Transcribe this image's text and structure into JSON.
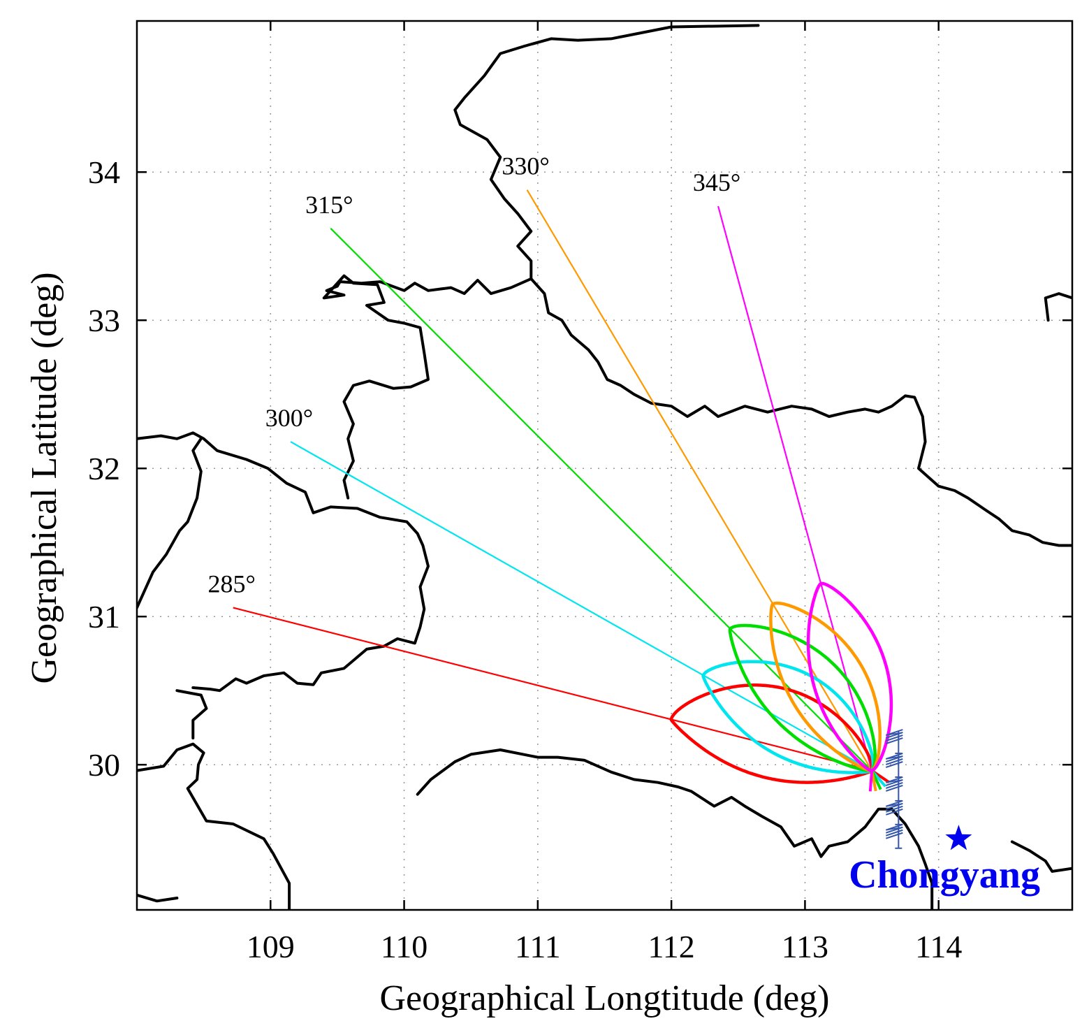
{
  "chart_data": {
    "type": "map",
    "xlabel": "Geographical Longtitude (deg)",
    "ylabel": "Geographical Latitude (deg)",
    "xlim": [
      108,
      115
    ],
    "ylim": [
      29.02,
      35.02
    ],
    "xticks": [
      109,
      110,
      111,
      112,
      113,
      114
    ],
    "yticks": [
      30,
      31,
      32,
      33,
      34
    ],
    "grid": true,
    "radar_site": {
      "lon": 113.5,
      "lat": 29.96
    },
    "beams": [
      {
        "label": "285°",
        "azimuth": 285,
        "color": "#ff0000",
        "end": [
          108.72,
          31.06
        ],
        "lobe_length_deg": 1.55,
        "lobe_halfwidth_deg": 0.34,
        "lobe_bend": 0.06
      },
      {
        "label": "300°",
        "azimuth": 300,
        "color": "#00e5ee",
        "end": [
          109.15,
          32.18
        ],
        "lobe_length_deg": 1.45,
        "lobe_halfwidth_deg": 0.32,
        "lobe_bend": 0.05
      },
      {
        "label": "315°",
        "azimuth": 315,
        "color": "#00dd00",
        "end": [
          109.45,
          33.62
        ],
        "lobe_length_deg": 1.5,
        "lobe_halfwidth_deg": 0.3,
        "lobe_bend": 0.04
      },
      {
        "label": "330°",
        "azimuth": 330,
        "color": "#ff9900",
        "end": [
          110.92,
          33.88
        ],
        "lobe_length_deg": 1.45,
        "lobe_halfwidth_deg": 0.29,
        "lobe_bend": 0.03
      },
      {
        "label": "345°",
        "azimuth": 345,
        "color": "#ff00ff",
        "end": [
          112.35,
          33.77
        ],
        "lobe_length_deg": 1.45,
        "lobe_halfwidth_deg": 0.28,
        "lobe_bend": 0.02
      }
    ],
    "station": {
      "name": "Chongyang",
      "lon": 114.15,
      "lat": 29.5,
      "color": "#0000ee",
      "marker": "star"
    },
    "antenna_array": {
      "lon": 113.7,
      "lats": [
        30.18,
        30.02,
        29.86,
        29.7,
        29.54
      ],
      "color": "#3355aa"
    },
    "borders": [
      [
        [
          108.0,
          29.96
        ],
        [
          108.2,
          29.99
        ],
        [
          108.3,
          30.1
        ],
        [
          108.42,
          30.14
        ],
        [
          108.5,
          30.08
        ],
        [
          108.46,
          30.0
        ],
        [
          108.45,
          29.9
        ],
        [
          108.38,
          29.84
        ],
        [
          108.52,
          29.62
        ],
        [
          108.72,
          29.6
        ],
        [
          108.95,
          29.5
        ],
        [
          109.02,
          29.4
        ],
        [
          109.14,
          29.2
        ],
        [
          109.14,
          29.02
        ]
      ],
      [
        [
          108.3,
          30.5
        ],
        [
          108.48,
          30.47
        ],
        [
          108.52,
          30.38
        ],
        [
          108.42,
          30.3
        ],
        [
          108.42,
          30.18
        ]
      ],
      [
        [
          108.42,
          30.52
        ],
        [
          108.55,
          30.51
        ],
        [
          108.62,
          30.5
        ],
        [
          108.74,
          30.58
        ],
        [
          108.82,
          30.55
        ],
        [
          108.95,
          30.6
        ],
        [
          109.1,
          30.62
        ],
        [
          109.2,
          30.55
        ],
        [
          109.32,
          30.54
        ],
        [
          109.38,
          30.62
        ],
        [
          109.55,
          30.65
        ],
        [
          109.72,
          30.78
        ],
        [
          109.85,
          30.8
        ],
        [
          109.95,
          30.85
        ],
        [
          110.08,
          30.82
        ],
        [
          110.12,
          30.93
        ],
        [
          110.15,
          31.05
        ],
        [
          110.12,
          31.2
        ],
        [
          110.18,
          31.34
        ],
        [
          110.14,
          31.48
        ],
        [
          110.1,
          31.56
        ],
        [
          110.02,
          31.64
        ],
        [
          109.82,
          31.67
        ],
        [
          109.65,
          31.73
        ],
        [
          109.45,
          31.74
        ],
        [
          109.32,
          31.7
        ],
        [
          109.26,
          31.84
        ],
        [
          109.12,
          31.9
        ],
        [
          108.98,
          32.0
        ],
        [
          108.82,
          32.06
        ],
        [
          108.6,
          32.12
        ],
        [
          108.5,
          32.2
        ],
        [
          108.42,
          32.24
        ],
        [
          108.3,
          32.2
        ],
        [
          108.18,
          32.22
        ],
        [
          108.0,
          32.2
        ]
      ],
      [
        [
          108.0,
          31.06
        ],
        [
          108.12,
          31.3
        ],
        [
          108.22,
          31.42
        ],
        [
          108.32,
          31.58
        ],
        [
          108.38,
          31.64
        ],
        [
          108.45,
          31.8
        ],
        [
          108.48,
          31.98
        ],
        [
          108.42,
          32.12
        ],
        [
          108.48,
          32.2
        ]
      ],
      [
        [
          109.58,
          31.8
        ],
        [
          109.55,
          31.92
        ],
        [
          109.62,
          32.05
        ],
        [
          109.58,
          32.2
        ],
        [
          109.62,
          32.3
        ],
        [
          109.55,
          32.45
        ],
        [
          109.62,
          32.56
        ],
        [
          109.74,
          32.59
        ],
        [
          109.92,
          32.54
        ],
        [
          110.05,
          32.55
        ],
        [
          110.18,
          32.6
        ],
        [
          110.15,
          32.78
        ],
        [
          110.12,
          32.95
        ],
        [
          110.0,
          32.98
        ],
        [
          109.88,
          33.0
        ],
        [
          109.72,
          33.1
        ],
        [
          109.85,
          33.12
        ],
        [
          109.8,
          33.24
        ],
        [
          109.62,
          33.25
        ],
        [
          109.55,
          33.3
        ],
        [
          109.45,
          33.2
        ],
        [
          109.4,
          33.15
        ],
        [
          109.55,
          33.17
        ],
        [
          109.42,
          33.2
        ],
        [
          109.5,
          33.23
        ]
      ],
      [
        [
          109.5,
          33.23
        ],
        [
          109.52,
          33.26
        ],
        [
          109.68,
          33.25
        ],
        [
          109.82,
          33.26
        ],
        [
          110.0,
          33.2
        ],
        [
          110.08,
          33.25
        ],
        [
          110.18,
          33.2
        ],
        [
          110.35,
          33.22
        ],
        [
          110.45,
          33.18
        ],
        [
          110.55,
          33.27
        ],
        [
          110.65,
          33.18
        ],
        [
          110.8,
          33.22
        ],
        [
          110.95,
          33.28
        ],
        [
          111.05,
          33.18
        ],
        [
          111.08,
          33.05
        ],
        [
          111.18,
          33.0
        ],
        [
          111.25,
          32.9
        ],
        [
          111.38,
          32.8
        ],
        [
          111.45,
          32.72
        ],
        [
          111.52,
          32.6
        ],
        [
          111.62,
          32.56
        ],
        [
          111.72,
          32.5
        ],
        [
          111.85,
          32.44
        ],
        [
          112.0,
          32.42
        ],
        [
          112.12,
          32.35
        ],
        [
          112.25,
          32.42
        ],
        [
          112.35,
          32.35
        ],
        [
          112.55,
          32.42
        ],
        [
          112.72,
          32.38
        ],
        [
          112.9,
          32.42
        ],
        [
          113.05,
          32.4
        ],
        [
          113.18,
          32.35
        ],
        [
          113.32,
          32.38
        ],
        [
          113.45,
          32.4
        ],
        [
          113.55,
          32.38
        ],
        [
          113.65,
          32.42
        ],
        [
          113.75,
          32.49
        ],
        [
          113.82,
          32.48
        ],
        [
          113.88,
          32.35
        ],
        [
          113.9,
          32.18
        ],
        [
          113.85,
          32.0
        ],
        [
          114.0,
          31.88
        ],
        [
          114.12,
          31.85
        ],
        [
          114.22,
          31.8
        ],
        [
          114.35,
          31.72
        ],
        [
          114.45,
          31.66
        ],
        [
          114.55,
          31.58
        ],
        [
          114.68,
          31.55
        ],
        [
          114.78,
          31.5
        ],
        [
          114.9,
          31.48
        ],
        [
          115.0,
          31.48
        ]
      ],
      [
        [
          114.82,
          33.0
        ],
        [
          114.8,
          33.15
        ],
        [
          114.9,
          33.18
        ],
        [
          115.0,
          33.15
        ]
      ],
      [
        [
          112.65,
          34.99
        ],
        [
          112.0,
          34.98
        ],
        [
          111.55,
          34.9
        ],
        [
          111.3,
          34.89
        ],
        [
          111.1,
          34.9
        ],
        [
          110.9,
          34.85
        ],
        [
          110.72,
          34.8
        ],
        [
          110.6,
          34.65
        ],
        [
          110.45,
          34.5
        ],
        [
          110.38,
          34.42
        ],
        [
          110.42,
          34.32
        ],
        [
          110.62,
          34.22
        ],
        [
          110.72,
          34.1
        ],
        [
          110.65,
          33.95
        ],
        [
          110.75,
          33.82
        ],
        [
          110.85,
          33.72
        ],
        [
          110.95,
          33.6
        ],
        [
          110.85,
          33.5
        ],
        [
          110.95,
          33.4
        ],
        [
          110.95,
          33.28
        ]
      ],
      [
        [
          110.1,
          29.8
        ],
        [
          110.2,
          29.9
        ],
        [
          110.38,
          30.02
        ],
        [
          110.5,
          30.07
        ],
        [
          110.72,
          30.1
        ],
        [
          111.0,
          30.05
        ],
        [
          111.15,
          30.05
        ],
        [
          111.35,
          30.03
        ],
        [
          111.55,
          29.95
        ],
        [
          111.72,
          29.9
        ],
        [
          111.9,
          29.88
        ],
        [
          112.05,
          29.85
        ],
        [
          112.15,
          29.82
        ],
        [
          112.32,
          29.72
        ],
        [
          112.45,
          29.78
        ],
        [
          112.55,
          29.72
        ],
        [
          112.68,
          29.65
        ],
        [
          112.82,
          29.58
        ],
        [
          112.92,
          29.45
        ],
        [
          113.05,
          29.5
        ],
        [
          113.12,
          29.38
        ],
        [
          113.18,
          29.45
        ],
        [
          113.32,
          29.48
        ],
        [
          113.45,
          29.58
        ],
        [
          113.55,
          29.7
        ],
        [
          113.65,
          29.7
        ],
        [
          113.75,
          29.6
        ],
        [
          113.85,
          29.45
        ],
        [
          113.9,
          29.33
        ],
        [
          113.95,
          29.2
        ],
        [
          113.95,
          29.02
        ]
      ],
      [
        [
          114.55,
          29.48
        ],
        [
          114.68,
          29.42
        ],
        [
          114.8,
          29.35
        ],
        [
          114.85,
          29.28
        ],
        [
          115.0,
          29.3
        ]
      ],
      [
        [
          108.0,
          29.12
        ],
        [
          108.15,
          29.08
        ],
        [
          108.3,
          29.1
        ]
      ]
    ]
  }
}
